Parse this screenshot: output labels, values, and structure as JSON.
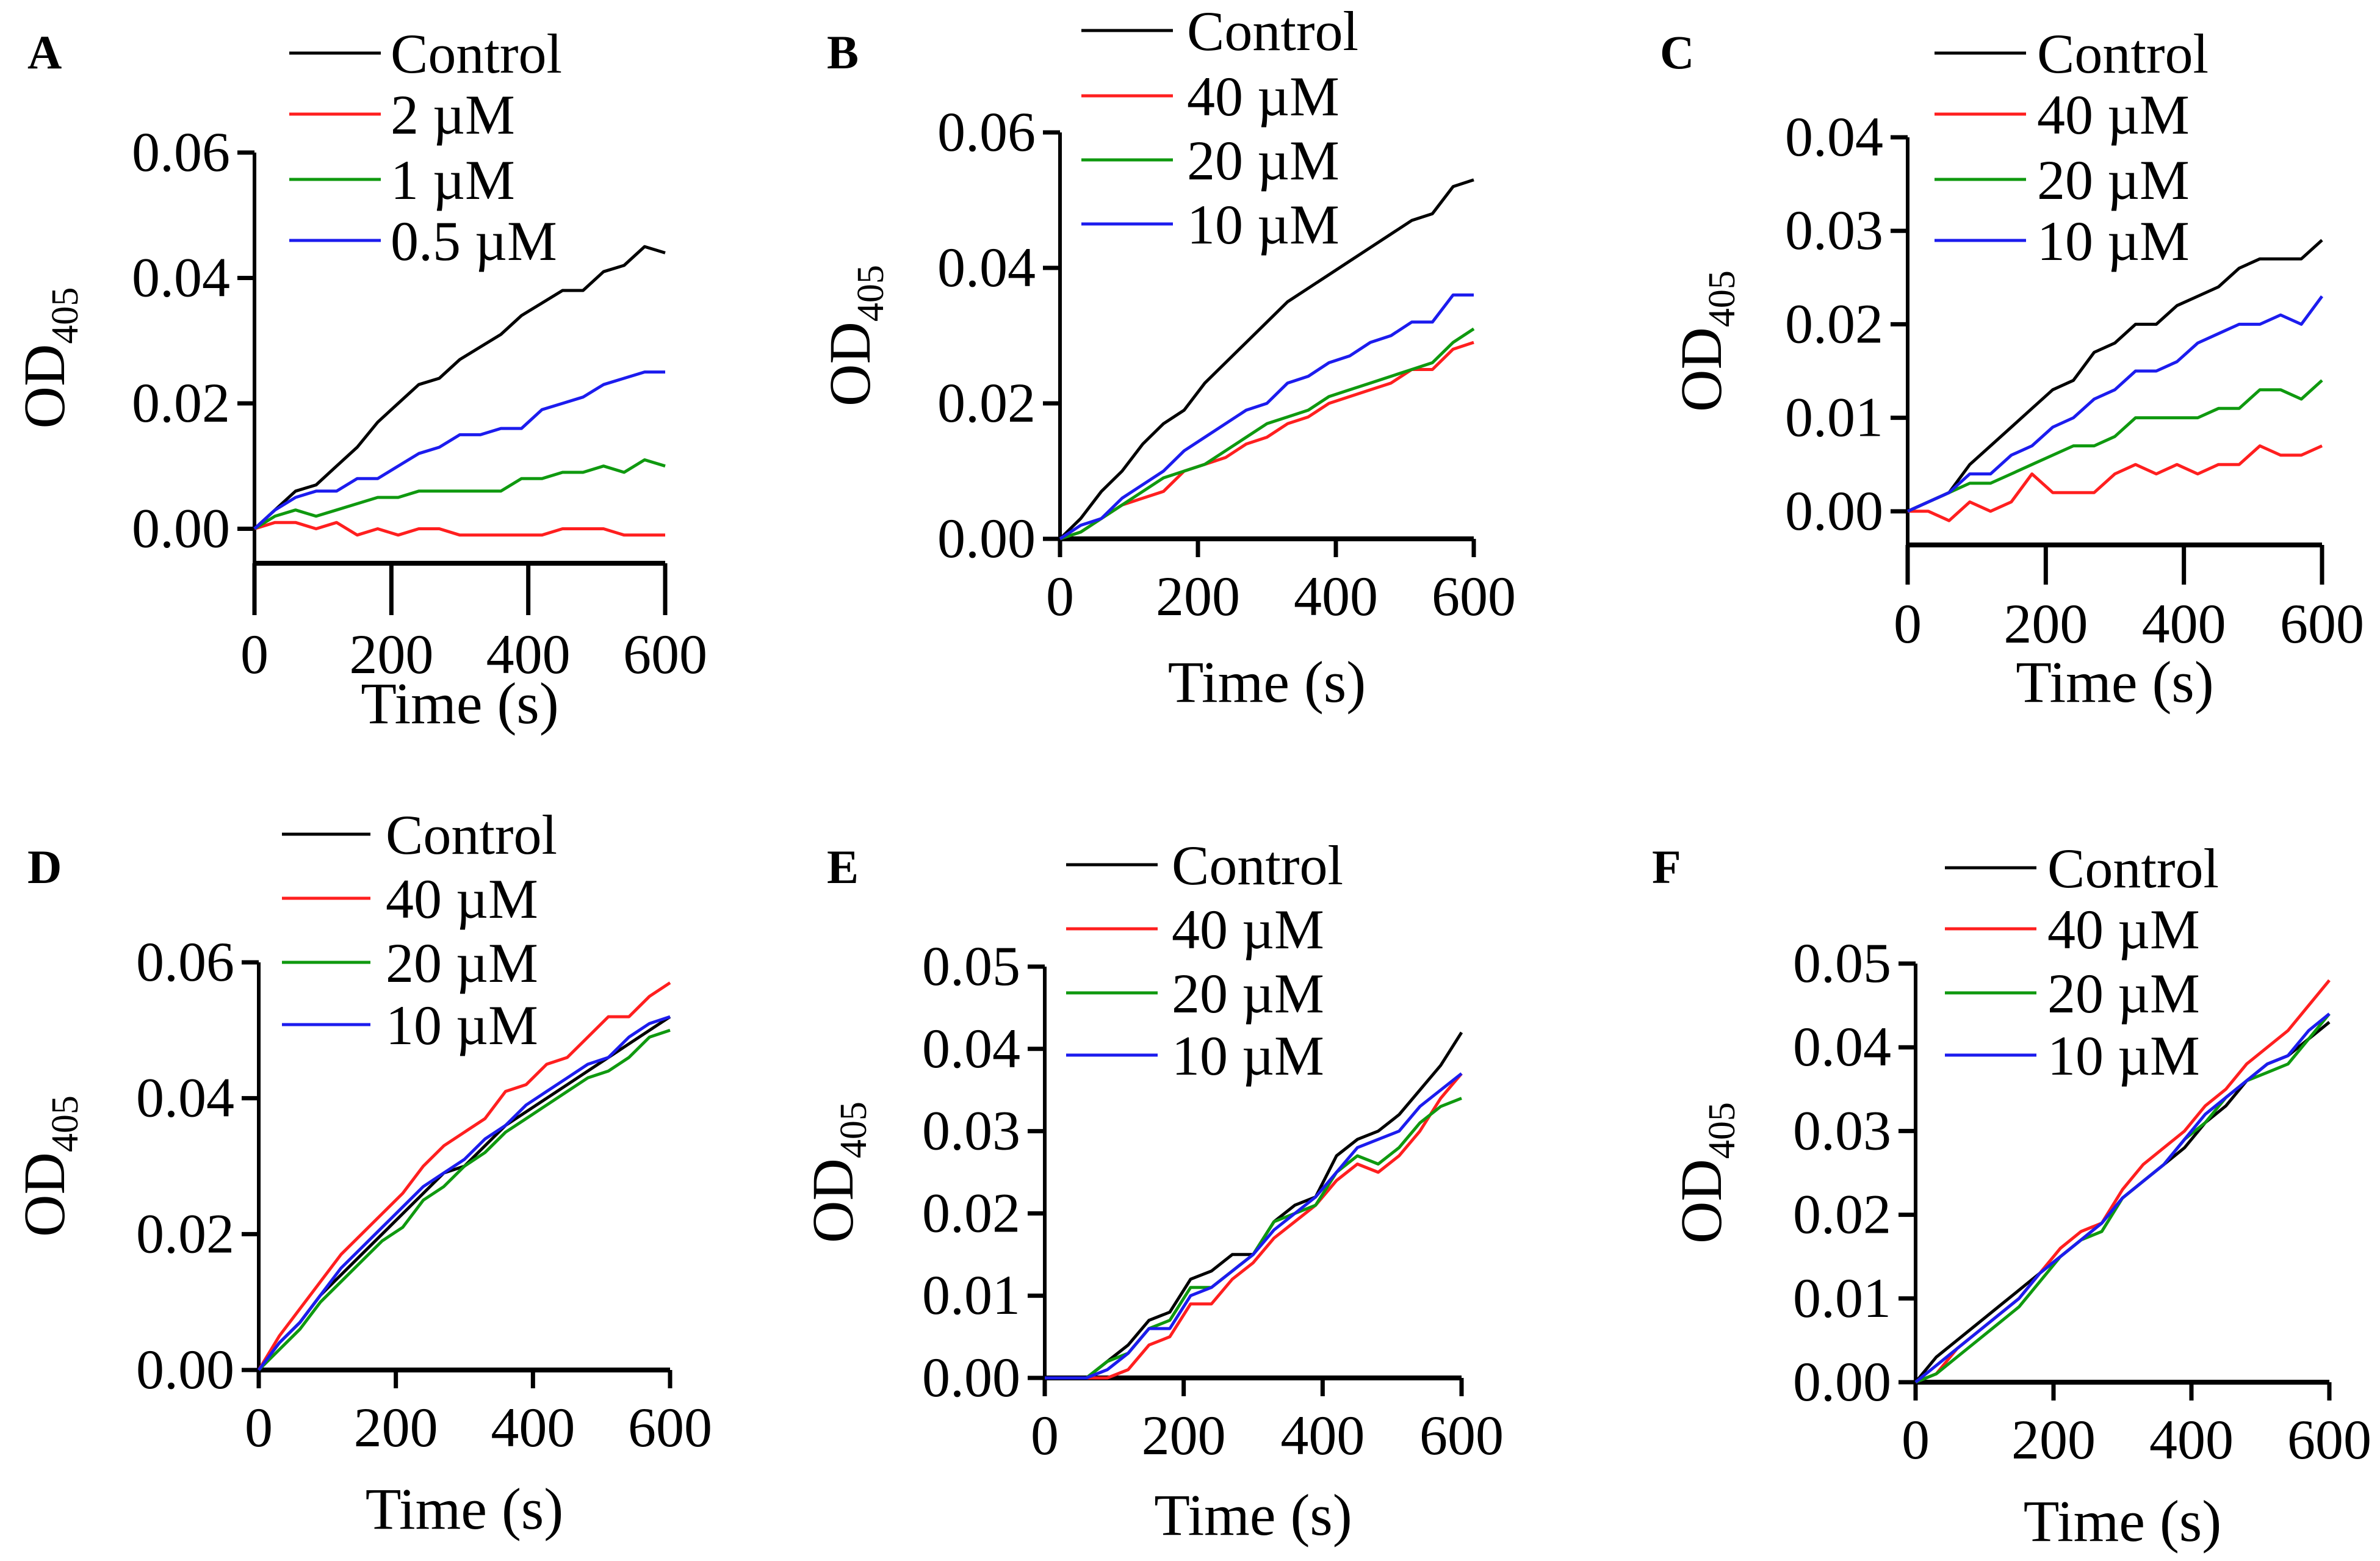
{
  "colors": {
    "Control": "#000000",
    "red": "#ff1f1f",
    "green": "#0f990f",
    "blue": "#1c1cee"
  },
  "chart_data": [
    {
      "panel": "A",
      "type": "line",
      "xlabel": "Time (s)",
      "ylabel": "OD",
      "ylabel_sub": "405",
      "xlim": [
        0,
        600
      ],
      "ylim": [
        -0.0055,
        0.06
      ],
      "xticks": [
        "0",
        "200",
        "400",
        "600"
      ],
      "yticks": [
        "0.00",
        "0.02",
        "0.04",
        "0.06"
      ],
      "legend_position": "top",
      "x": [
        0,
        30,
        60,
        90,
        120,
        150,
        180,
        210,
        240,
        270,
        300,
        330,
        360,
        390,
        420,
        450,
        480,
        510,
        540,
        570,
        600
      ],
      "series": [
        {
          "name": "Control",
          "color": "#000000",
          "values": [
            0,
            0.003,
            0.006,
            0.007,
            0.01,
            0.013,
            0.017,
            0.02,
            0.023,
            0.024,
            0.027,
            0.029,
            0.031,
            0.034,
            0.036,
            0.038,
            0.038,
            0.041,
            0.042,
            0.045,
            0.044
          ]
        },
        {
          "name": "2 µM",
          "color": "#ff1f1f",
          "values": [
            0,
            0.001,
            0.001,
            0,
            0.001,
            -0.001,
            0,
            -0.001,
            0,
            0,
            -0.001,
            -0.001,
            -0.001,
            -0.001,
            -0.001,
            0,
            0,
            0,
            -0.001,
            -0.001,
            -0.001
          ]
        },
        {
          "name": "1 µM",
          "color": "#0f990f",
          "values": [
            0,
            0.002,
            0.003,
            0.002,
            0.003,
            0.004,
            0.005,
            0.005,
            0.006,
            0.006,
            0.006,
            0.006,
            0.006,
            0.008,
            0.008,
            0.009,
            0.009,
            0.01,
            0.009,
            0.011,
            0.01
          ]
        },
        {
          "name": "0.5 µM",
          "color": "#1c1cee",
          "values": [
            0,
            0.003,
            0.005,
            0.006,
            0.006,
            0.008,
            0.008,
            0.01,
            0.012,
            0.013,
            0.015,
            0.015,
            0.016,
            0.016,
            0.019,
            0.02,
            0.021,
            0.023,
            0.024,
            0.025,
            0.025
          ]
        }
      ]
    },
    {
      "panel": "B",
      "type": "line",
      "xlabel": "Time (s)",
      "ylabel": "OD",
      "ylabel_sub": "405",
      "xlim": [
        0,
        600
      ],
      "ylim": [
        0,
        0.06
      ],
      "xticks": [
        "0",
        "200",
        "400",
        "600"
      ],
      "yticks": [
        "0.00",
        "0.02",
        "0.04",
        "0.06"
      ],
      "legend_position": "top",
      "x": [
        0,
        30,
        60,
        90,
        120,
        150,
        180,
        210,
        240,
        270,
        300,
        330,
        360,
        390,
        420,
        450,
        480,
        510,
        540,
        570,
        600
      ],
      "series": [
        {
          "name": "Control",
          "color": "#000000",
          "values": [
            0,
            0.003,
            0.007,
            0.01,
            0.014,
            0.017,
            0.019,
            0.023,
            0.026,
            0.029,
            0.032,
            0.035,
            0.037,
            0.039,
            0.041,
            0.043,
            0.045,
            0.047,
            0.048,
            0.052,
            0.053
          ]
        },
        {
          "name": "40 µM",
          "color": "#ff1f1f",
          "values": [
            0,
            0.001,
            0.003,
            0.005,
            0.006,
            0.007,
            0.01,
            0.011,
            0.012,
            0.014,
            0.015,
            0.017,
            0.018,
            0.02,
            0.021,
            0.022,
            0.023,
            0.025,
            0.025,
            0.028,
            0.029
          ]
        },
        {
          "name": "20 µM",
          "color": "#0f990f",
          "values": [
            0,
            0.001,
            0.003,
            0.005,
            0.007,
            0.009,
            0.01,
            0.011,
            0.013,
            0.015,
            0.017,
            0.018,
            0.019,
            0.021,
            0.022,
            0.023,
            0.024,
            0.025,
            0.026,
            0.029,
            0.031
          ]
        },
        {
          "name": "10 µM",
          "color": "#1c1cee",
          "values": [
            0,
            0.002,
            0.003,
            0.006,
            0.008,
            0.01,
            0.013,
            0.015,
            0.017,
            0.019,
            0.02,
            0.023,
            0.024,
            0.026,
            0.027,
            0.029,
            0.03,
            0.032,
            0.032,
            0.036,
            0.036
          ]
        }
      ]
    },
    {
      "panel": "C",
      "type": "line",
      "xlabel": "Time (s)",
      "ylabel": "OD",
      "ylabel_sub": "405",
      "xlim": [
        0,
        600
      ],
      "ylim": [
        -0.0036,
        0.04
      ],
      "xticks": [
        "0",
        "200",
        "400",
        "600"
      ],
      "yticks": [
        "0.00",
        "0.01",
        "0.02",
        "0.03",
        "0.04"
      ],
      "legend_position": "top",
      "x": [
        0,
        30,
        60,
        90,
        120,
        150,
        180,
        210,
        240,
        270,
        300,
        330,
        360,
        390,
        420,
        450,
        480,
        510,
        540,
        570,
        600
      ],
      "series": [
        {
          "name": "Control",
          "color": "#000000",
          "values": [
            0,
            0.001,
            0.002,
            0.005,
            0.007,
            0.009,
            0.011,
            0.013,
            0.014,
            0.017,
            0.018,
            0.02,
            0.02,
            0.022,
            0.023,
            0.024,
            0.026,
            0.027,
            0.027,
            0.027,
            0.029
          ]
        },
        {
          "name": "40 µM",
          "color": "#ff1f1f",
          "values": [
            0,
            0,
            -0.001,
            0.001,
            0,
            0.001,
            0.004,
            0.002,
            0.002,
            0.002,
            0.004,
            0.005,
            0.004,
            0.005,
            0.004,
            0.005,
            0.005,
            0.007,
            0.006,
            0.006,
            0.007
          ]
        },
        {
          "name": "20 µM",
          "color": "#0f990f",
          "values": [
            0,
            0.001,
            0.002,
            0.003,
            0.003,
            0.004,
            0.005,
            0.006,
            0.007,
            0.007,
            0.008,
            0.01,
            0.01,
            0.01,
            0.01,
            0.011,
            0.011,
            0.013,
            0.013,
            0.012,
            0.014
          ]
        },
        {
          "name": "10 µM",
          "color": "#1c1cee",
          "values": [
            0,
            0.001,
            0.002,
            0.004,
            0.004,
            0.006,
            0.007,
            0.009,
            0.01,
            0.012,
            0.013,
            0.015,
            0.015,
            0.016,
            0.018,
            0.019,
            0.02,
            0.02,
            0.021,
            0.02,
            0.023
          ]
        }
      ]
    },
    {
      "panel": "D",
      "type": "line",
      "xlabel": "Time (s)",
      "ylabel": "OD",
      "ylabel_sub": "405",
      "xlim": [
        0,
        600
      ],
      "ylim": [
        0,
        0.06
      ],
      "xticks": [
        "0",
        "200",
        "400",
        "600"
      ],
      "yticks": [
        "0.00",
        "0.02",
        "0.04",
        "0.06"
      ],
      "legend_position": "top",
      "x": [
        0,
        30,
        60,
        90,
        120,
        150,
        180,
        210,
        240,
        270,
        300,
        330,
        360,
        390,
        420,
        450,
        480,
        510,
        540,
        570,
        600
      ],
      "series": [
        {
          "name": "Control",
          "color": "#000000",
          "values": [
            0,
            0.004,
            0.007,
            0.011,
            0.014,
            0.017,
            0.02,
            0.023,
            0.026,
            0.029,
            0.03,
            0.033,
            0.036,
            0.038,
            0.04,
            0.042,
            0.044,
            0.046,
            0.048,
            0.05,
            0.052
          ]
        },
        {
          "name": "40 µM",
          "color": "#ff1f1f",
          "values": [
            0,
            0.005,
            0.009,
            0.013,
            0.017,
            0.02,
            0.023,
            0.026,
            0.03,
            0.033,
            0.035,
            0.037,
            0.041,
            0.042,
            0.045,
            0.046,
            0.049,
            0.052,
            0.052,
            0.055,
            0.057
          ]
        },
        {
          "name": "20 µM",
          "color": "#0f990f",
          "values": [
            0,
            0.003,
            0.006,
            0.01,
            0.013,
            0.016,
            0.019,
            0.021,
            0.025,
            0.027,
            0.03,
            0.032,
            0.035,
            0.037,
            0.039,
            0.041,
            0.043,
            0.044,
            0.046,
            0.049,
            0.05
          ]
        },
        {
          "name": "10 µM",
          "color": "#1c1cee",
          "values": [
            0,
            0.004,
            0.007,
            0.011,
            0.015,
            0.018,
            0.021,
            0.024,
            0.027,
            0.029,
            0.031,
            0.034,
            0.036,
            0.039,
            0.041,
            0.043,
            0.045,
            0.046,
            0.049,
            0.051,
            0.052
          ]
        }
      ]
    },
    {
      "panel": "E",
      "type": "line",
      "xlabel": "Time (s)",
      "ylabel": "OD",
      "ylabel_sub": "405",
      "xlim": [
        0,
        600
      ],
      "ylim": [
        0,
        0.05
      ],
      "xticks": [
        "0",
        "200",
        "400",
        "600"
      ],
      "yticks": [
        "0.00",
        "0.01",
        "0.02",
        "0.03",
        "0.04",
        "0.05"
      ],
      "legend_position": "top",
      "x": [
        0,
        30,
        60,
        90,
        120,
        150,
        180,
        210,
        240,
        270,
        300,
        330,
        360,
        390,
        420,
        450,
        480,
        510,
        540,
        570,
        600
      ],
      "series": [
        {
          "name": "Control",
          "color": "#000000",
          "values": [
            0,
            0,
            0,
            0.002,
            0.004,
            0.007,
            0.008,
            0.012,
            0.013,
            0.015,
            0.015,
            0.019,
            0.021,
            0.022,
            0.027,
            0.029,
            0.03,
            0.032,
            0.035,
            0.038,
            0.042
          ]
        },
        {
          "name": "40 µM",
          "color": "#ff1f1f",
          "values": [
            0,
            0,
            0,
            0,
            0.001,
            0.004,
            0.005,
            0.009,
            0.009,
            0.012,
            0.014,
            0.017,
            0.019,
            0.021,
            0.024,
            0.026,
            0.025,
            0.027,
            0.03,
            0.034,
            0.037
          ]
        },
        {
          "name": "20 µM",
          "color": "#0f990f",
          "values": [
            0,
            0,
            0,
            0.002,
            0.003,
            0.006,
            0.007,
            0.011,
            0.011,
            0.013,
            0.015,
            0.019,
            0.02,
            0.021,
            0.025,
            0.027,
            0.026,
            0.028,
            0.031,
            0.033,
            0.034
          ]
        },
        {
          "name": "10 µM",
          "color": "#1c1cee",
          "values": [
            0,
            0,
            0,
            0.001,
            0.003,
            0.006,
            0.006,
            0.01,
            0.011,
            0.013,
            0.015,
            0.018,
            0.02,
            0.022,
            0.025,
            0.028,
            0.029,
            0.03,
            0.033,
            0.035,
            0.037
          ]
        }
      ]
    },
    {
      "panel": "F",
      "type": "line",
      "xlabel": "Time (s)",
      "ylabel": "OD",
      "ylabel_sub": "405",
      "xlim": [
        0,
        600
      ],
      "ylim": [
        0,
        0.05
      ],
      "xticks": [
        "0",
        "200",
        "400",
        "600"
      ],
      "yticks": [
        "0.00",
        "0.01",
        "0.02",
        "0.03",
        "0.04",
        "0.05"
      ],
      "legend_position": "top",
      "x": [
        0,
        30,
        60,
        90,
        120,
        150,
        180,
        210,
        240,
        270,
        300,
        330,
        360,
        390,
        420,
        450,
        480,
        510,
        540,
        570,
        600
      ],
      "series": [
        {
          "name": "Control",
          "color": "#000000",
          "values": [
            0,
            0.003,
            0.005,
            0.007,
            0.009,
            0.011,
            0.013,
            0.015,
            0.017,
            0.019,
            0.022,
            0.024,
            0.026,
            0.028,
            0.031,
            0.033,
            0.036,
            0.038,
            0.039,
            0.041,
            0.043
          ]
        },
        {
          "name": "40 µM",
          "color": "#ff1f1f",
          "values": [
            0,
            0.001,
            0.004,
            0.006,
            0.008,
            0.01,
            0.013,
            0.016,
            0.018,
            0.019,
            0.023,
            0.026,
            0.028,
            0.03,
            0.033,
            0.035,
            0.038,
            0.04,
            0.042,
            0.045,
            0.048
          ]
        },
        {
          "name": "20 µM",
          "color": "#0f990f",
          "values": [
            0,
            0.001,
            0.003,
            0.005,
            0.007,
            0.009,
            0.012,
            0.015,
            0.017,
            0.018,
            0.022,
            0.024,
            0.026,
            0.029,
            0.031,
            0.034,
            0.036,
            0.037,
            0.038,
            0.041,
            0.044
          ]
        },
        {
          "name": "10 µM",
          "color": "#1c1cee",
          "values": [
            0,
            0.002,
            0.004,
            0.006,
            0.008,
            0.01,
            0.013,
            0.015,
            0.017,
            0.019,
            0.022,
            0.024,
            0.026,
            0.029,
            0.032,
            0.034,
            0.036,
            0.038,
            0.039,
            0.042,
            0.044
          ]
        }
      ]
    }
  ]
}
